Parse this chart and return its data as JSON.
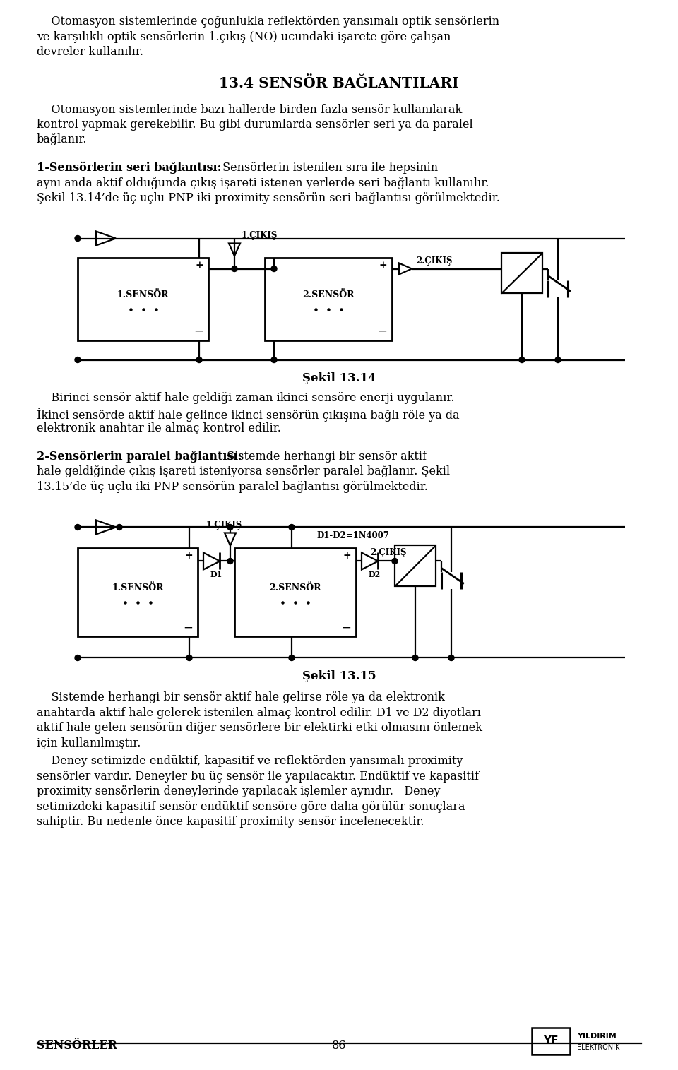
{
  "bg_color": "#ffffff",
  "page_width": 9.6,
  "page_height": 15.15,
  "ml": 0.52,
  "mr": 0.52,
  "fs_body": 11.5,
  "fs_heading": 14.5,
  "fs_caption": 12.0,
  "fs_footer": 11.5,
  "lh": 0.215,
  "heading": "13.4 SENSÖR BAĞLANTILARI",
  "fig14_caption": "Şekil 13.14",
  "fig15_caption": "Şekil 13.15",
  "footer_left": "SENSÖRLER",
  "footer_center": "86"
}
